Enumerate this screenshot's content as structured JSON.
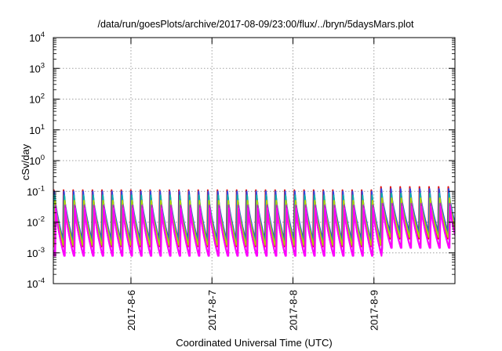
{
  "chart_data": {
    "type": "line",
    "title": "/data/run/goesPlots/archive/2017-08-09/23:00/flux/../bryn/5daysMars.plot",
    "xlabel": "Coordinated Universal Time (UTC)",
    "ylabel": "cSv/day",
    "yscale": "log",
    "ylim": [
      0.0001,
      10000
    ],
    "xlim": [
      "2017-08-05 01:00",
      "2017-08-10 00:00"
    ],
    "grid": true,
    "y_ticks": [
      {
        "base": "10",
        "exp": "-4"
      },
      {
        "base": "10",
        "exp": "-3"
      },
      {
        "base": "10",
        "exp": "-2"
      },
      {
        "base": "10",
        "exp": "-1"
      },
      {
        "base": "10",
        "exp": "0"
      },
      {
        "base": "10",
        "exp": "1"
      },
      {
        "base": "10",
        "exp": "2"
      },
      {
        "base": "10",
        "exp": "3"
      },
      {
        "base": "10",
        "exp": "4"
      }
    ],
    "x_ticks": [
      "2017-8-6",
      "2017-8-7",
      "2017-8-8",
      "2017-8-9"
    ],
    "sawtooth_period_hours": 2.85,
    "series": [
      {
        "color": "#dd1111",
        "peak": 0.11,
        "trough": 0.0016,
        "late_peak": 0.14
      },
      {
        "color": "#3344dd",
        "peak": 0.1,
        "trough": 0.003,
        "late_peak": 0.12
      },
      {
        "color": "#10b0a8",
        "peak": 0.075,
        "trough": 0.0021,
        "late_peak": 0.085
      },
      {
        "color": "#b8d000",
        "peak": 0.05,
        "trough": 0.0018,
        "late_peak": 0.06
      },
      {
        "color": "#c020c0",
        "peak": 0.035,
        "trough": 0.0009,
        "late_peak": 0.04
      },
      {
        "color": "#ff00ff",
        "peak": 0.028,
        "trough": 0.0008,
        "late_peak": 0.032
      }
    ]
  }
}
